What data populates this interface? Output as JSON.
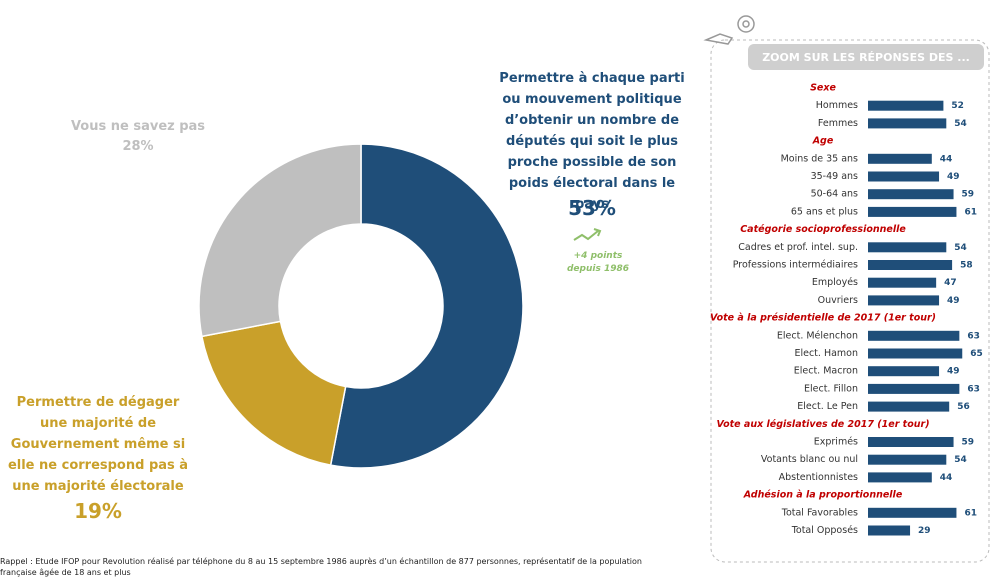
{
  "chart_data": [
    {
      "type": "pie",
      "donut": true,
      "categories": [
        "Permettre à chaque parti ou mouvement politique d’obtenir un nombre de députés qui soit le plus proche possible de son poids électoral dans le pays",
        "Permettre de dégager une majorité de Gouvernement même si elle ne correspond pas à une majorité électorale",
        "Vous ne savez pas"
      ],
      "values": [
        53,
        19,
        28
      ],
      "value_labels": [
        "53%",
        "19%",
        "28%"
      ],
      "colors": [
        "#1f4e79",
        "#c9a02a",
        "#bfbfbf"
      ],
      "annotation": "+4 points depuis 1986"
    },
    {
      "type": "bar",
      "orientation": "horizontal",
      "title": "ZOOM SUR LES RÉPONSES DES ...",
      "color": "#1f4e79",
      "groups": [
        {
          "name": "Sexe",
          "categories": [
            "Hommes",
            "Femmes"
          ],
          "values": [
            52,
            54
          ]
        },
        {
          "name": "Age",
          "categories": [
            "Moins de 35 ans",
            "35-49 ans",
            "50-64 ans",
            "65 ans et plus"
          ],
          "values": [
            44,
            49,
            59,
            61
          ]
        },
        {
          "name": "Catégorie socioprofessionnelle",
          "categories": [
            "Cadres et prof. intel. sup.",
            "Professions intermédiaires",
            "Employés",
            "Ouvriers"
          ],
          "values": [
            54,
            58,
            47,
            49
          ]
        },
        {
          "name": "Vote à la présidentielle de 2017 (1er tour)",
          "categories": [
            "Elect. Mélenchon",
            "Elect. Hamon",
            "Elect. Macron",
            "Elect. Fillon",
            "Elect. Le Pen"
          ],
          "values": [
            63,
            65,
            49,
            63,
            56
          ]
        },
        {
          "name": "Vote aux législatives de 2017 (1er tour)",
          "categories": [
            "Exprimés",
            "Votants blanc ou nul",
            "Abstentionnistes"
          ],
          "values": [
            59,
            54,
            44
          ]
        },
        {
          "name": "Adhésion à la proportionnelle",
          "categories": [
            "Total Favorables",
            "Total Opposés"
          ],
          "values": [
            61,
            29
          ]
        }
      ]
    }
  ],
  "footnote": "Rappel : Etude IFOP pour Revolution réalisé par téléphone du 8 au 15 septembre 1986 auprès d’un échantillon de 877 personnes, représentatif de la population française âgée de 18 ans et plus"
}
